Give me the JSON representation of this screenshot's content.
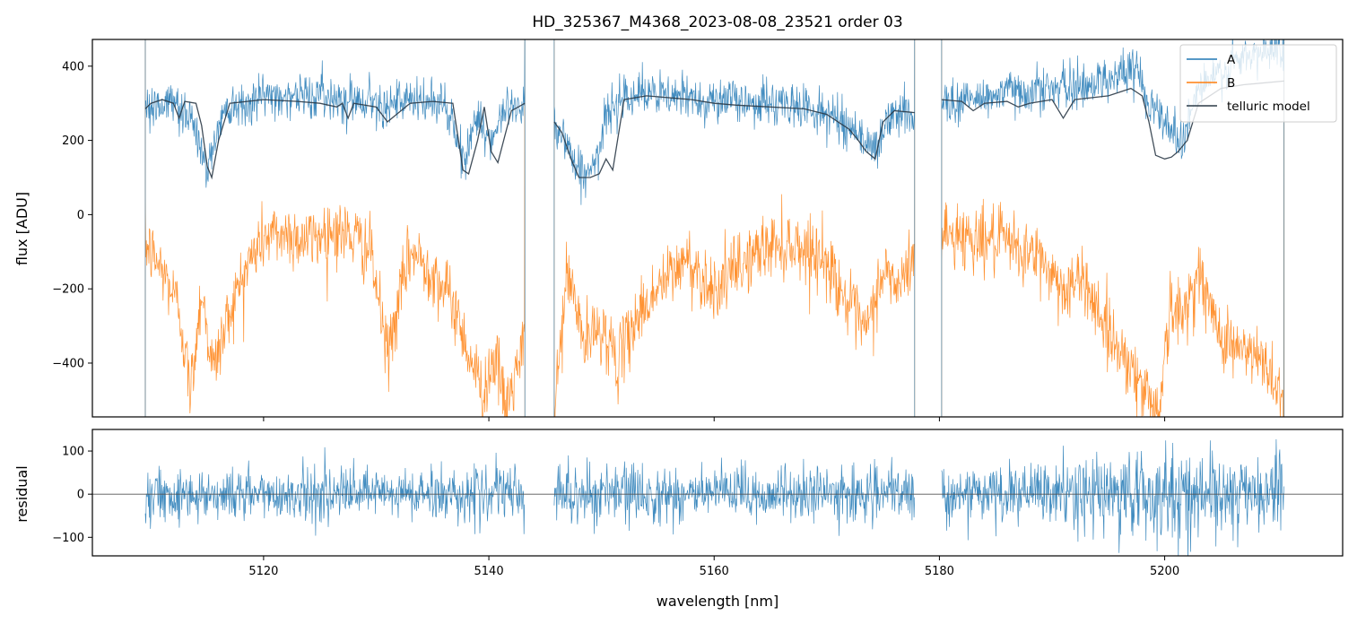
{
  "chart_data": [
    {
      "type": "line",
      "panel": "top",
      "title": "HD_325367_M4368_2023-08-08_23521  order 03",
      "ylabel": "flux [ADU]",
      "xlim": [
        5104.8,
        5215.8
      ],
      "ylim": [
        -545,
        472
      ],
      "yticks": [
        400,
        200,
        0,
        -200,
        -400
      ],
      "ytick_labels": [
        "400",
        "200",
        "0",
        "−200",
        "−400"
      ],
      "xticks": [
        5120,
        5140,
        5160,
        5180,
        5200
      ],
      "legend_position": "top-right",
      "segments": [
        [
          5109.5,
          5143.2
        ],
        [
          5145.8,
          5177.8
        ],
        [
          5180.2,
          5210.6
        ]
      ],
      "series": [
        {
          "name": "A",
          "color": "#1f77b4",
          "noise": 30,
          "x": [
            5109.5,
            5112,
            5113.5,
            5115,
            5116.5,
            5120,
            5125,
            5130,
            5133,
            5136,
            5137.8,
            5139,
            5140.2,
            5141.5,
            5143.2,
            5145.8,
            5147,
            5148,
            5149.5,
            5150.5,
            5152,
            5155,
            5160,
            5165,
            5168,
            5170,
            5172,
            5173.5,
            5174.3,
            5175.5,
            5177.8,
            5180.2,
            5183,
            5186,
            5189,
            5192,
            5195,
            5197.5,
            5198.5,
            5200,
            5201.5,
            5203,
            5205,
            5207,
            5210.6
          ],
          "y": [
            290,
            300,
            270,
            120,
            290,
            320,
            320,
            305,
            300,
            305,
            140,
            280,
            180,
            290,
            300,
            250,
            190,
            110,
            130,
            270,
            330,
            320,
            310,
            300,
            290,
            270,
            240,
            200,
            170,
            260,
            280,
            300,
            310,
            330,
            340,
            340,
            370,
            390,
            320,
            250,
            200,
            340,
            380,
            420,
            450
          ]
        },
        {
          "name": "B",
          "color": "#ff7f0e",
          "noise": 45,
          "x": [
            5109.5,
            5111,
            5112.5,
            5113.5,
            5114.5,
            5115.5,
            5117,
            5118.5,
            5120,
            5122,
            5124,
            5126,
            5128,
            5129.5,
            5131,
            5133,
            5135,
            5137,
            5138.5,
            5139.5,
            5140.5,
            5141.5,
            5143.2,
            5145.8,
            5147,
            5148.5,
            5150,
            5151.5,
            5153,
            5155,
            5157.5,
            5160,
            5163,
            5165,
            5167,
            5169,
            5170.5,
            5172,
            5173.5,
            5175,
            5176.5,
            5177.8,
            5180.2,
            5183,
            5186,
            5189,
            5191,
            5193,
            5195,
            5196.5,
            5198,
            5199.5,
            5200.5,
            5201.5,
            5203,
            5204.5,
            5206,
            5207.5,
            5209,
            5210.6
          ],
          "y": [
            -80,
            -150,
            -250,
            -480,
            -200,
            -420,
            -260,
            -140,
            -60,
            -50,
            -70,
            -40,
            -60,
            -100,
            -380,
            -100,
            -150,
            -250,
            -400,
            -480,
            -380,
            -520,
            -350,
            -520,
            -150,
            -350,
            -300,
            -400,
            -280,
            -200,
            -120,
            -200,
            -120,
            -80,
            -80,
            -100,
            -150,
            -250,
            -320,
            -150,
            -200,
            -100,
            -50,
            -60,
            -80,
            -120,
            -200,
            -180,
            -320,
            -380,
            -470,
            -520,
            -250,
            -280,
            -150,
            -300,
            -350,
            -380,
            -400,
            -500
          ]
        },
        {
          "name": "telluric model",
          "color": "#2b3a47",
          "x": [
            5109.5,
            5110,
            5111,
            5112,
            5112.5,
            5113,
            5114,
            5114.5,
            5115,
            5115.4,
            5116,
            5117,
            5120,
            5123,
            5125,
            5126.5,
            5127,
            5127.5,
            5128,
            5130,
            5131,
            5133,
            5135,
            5136.8,
            5137.3,
            5137.7,
            5138.2,
            5139,
            5139.6,
            5140.2,
            5140.8,
            5142,
            5143.2,
            5145.8,
            5146.5,
            5147.3,
            5148,
            5149,
            5149.8,
            5150.4,
            5151,
            5152,
            5154,
            5158,
            5160,
            5162,
            5165,
            5168,
            5170,
            5171,
            5172,
            5172.8,
            5173.5,
            5174.3,
            5175,
            5176,
            5177.8,
            5180.2,
            5182,
            5183,
            5184,
            5186,
            5187,
            5188,
            5190,
            5191,
            5192,
            5195,
            5197,
            5198,
            5198.6,
            5199.2,
            5200,
            5200.6,
            5201.2,
            5202,
            5203,
            5205,
            5207,
            5210.6
          ],
          "y": [
            285,
            300,
            310,
            300,
            260,
            305,
            300,
            240,
            130,
            100,
            200,
            300,
            310,
            305,
            300,
            290,
            300,
            260,
            300,
            290,
            250,
            300,
            305,
            300,
            200,
            120,
            110,
            200,
            290,
            170,
            140,
            280,
            300,
            250,
            220,
            150,
            100,
            100,
            110,
            150,
            120,
            310,
            320,
            310,
            300,
            295,
            290,
            285,
            270,
            250,
            230,
            200,
            170,
            150,
            250,
            280,
            275,
            310,
            305,
            280,
            300,
            305,
            290,
            300,
            310,
            260,
            310,
            320,
            340,
            320,
            250,
            160,
            150,
            155,
            170,
            200,
            300,
            340,
            350,
            360
          ]
        }
      ]
    },
    {
      "type": "line",
      "panel": "bottom",
      "xlabel": "wavelength [nm]",
      "ylabel": "residual",
      "xlim": [
        5104.8,
        5215.8
      ],
      "ylim": [
        -143,
        150
      ],
      "yticks": [
        100,
        0,
        -100
      ],
      "ytick_labels": [
        "100",
        "0",
        "−100"
      ],
      "xticks": [
        5120,
        5140,
        5160,
        5180,
        5200
      ],
      "xtick_labels": [
        "5120",
        "5140",
        "5160",
        "5180",
        "5200"
      ],
      "zero_line": 0,
      "series": [
        {
          "color": "#1f77b4",
          "segments": [
            [
              5109.5,
              5143.2
            ],
            [
              5145.8,
              5177.8
            ],
            [
              5180.2,
              5210.6
            ]
          ],
          "noise_x": [
            5109.5,
            5140,
            5145.8,
            5150,
            5177.8,
            5180.2,
            5190,
            5197,
            5202,
            5210.6
          ],
          "noise_sd": [
            30,
            30,
            45,
            35,
            30,
            30,
            35,
            55,
            50,
            45
          ]
        }
      ]
    }
  ]
}
